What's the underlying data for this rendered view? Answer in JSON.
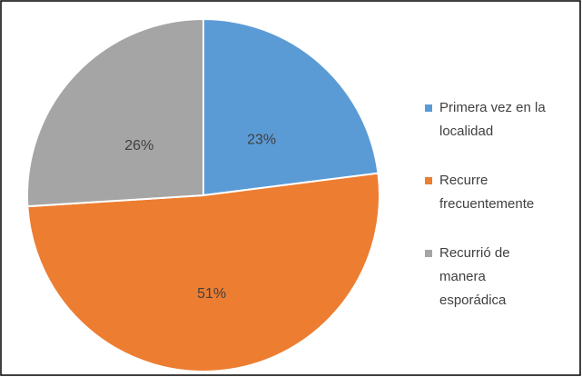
{
  "chart_data": {
    "type": "pie",
    "categories": [
      "Primera vez en la localidad",
      "Recurre frecuentemente",
      "Recurrió de manera esporádica"
    ],
    "values": [
      23,
      51,
      26
    ],
    "value_labels": [
      "23%",
      "51%",
      "26%"
    ],
    "colors": [
      "#5b9bd5",
      "#ed7d31",
      "#a5a5a5"
    ],
    "legend": "right"
  }
}
